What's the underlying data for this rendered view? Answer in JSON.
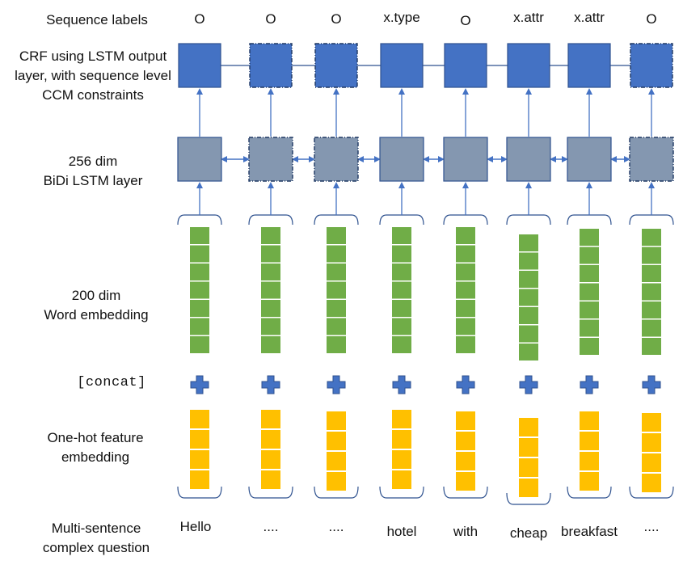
{
  "row_labels": {
    "sequence_labels": "Sequence labels",
    "crf_layer": [
      "CRF using LSTM output",
      "layer, with sequence level",
      "CCM constraints"
    ],
    "lstm_layer": [
      "256 dim",
      "BiDi LSTM layer"
    ],
    "word_embedding": [
      "200 dim",
      "Word embedding"
    ],
    "concat": "[concat]",
    "onehot_embedding": [
      "One-hot feature",
      "embedding"
    ],
    "input": [
      "Multi-sentence",
      "complex question"
    ]
  },
  "columns": [
    {
      "label": "O",
      "word": "Hello",
      "dashed": false
    },
    {
      "label": "O",
      "word": "....",
      "dashed": true
    },
    {
      "label": "O",
      "word": "....",
      "dashed": true
    },
    {
      "label": "x.type",
      "word": "hotel",
      "dashed": false
    },
    {
      "label": "O",
      "word": "with",
      "dashed": false
    },
    {
      "label": "x.attr",
      "word": "cheap",
      "dashed": false
    },
    {
      "label": "x.attr",
      "word": "breakfast",
      "dashed": false
    },
    {
      "label": "O",
      "word": "....",
      "dashed": true
    }
  ],
  "colors": {
    "crf_fill": "#4472C4",
    "crf_stroke": "#2F528F",
    "lstm_fill": "#8497B0",
    "lstm_stroke": "#2F528F",
    "arrow": "#4472C4",
    "word_emb": "#70AD47",
    "onehot_emb": "#FFC000",
    "plus": "#4472C4",
    "bracket": "#2F528F"
  }
}
